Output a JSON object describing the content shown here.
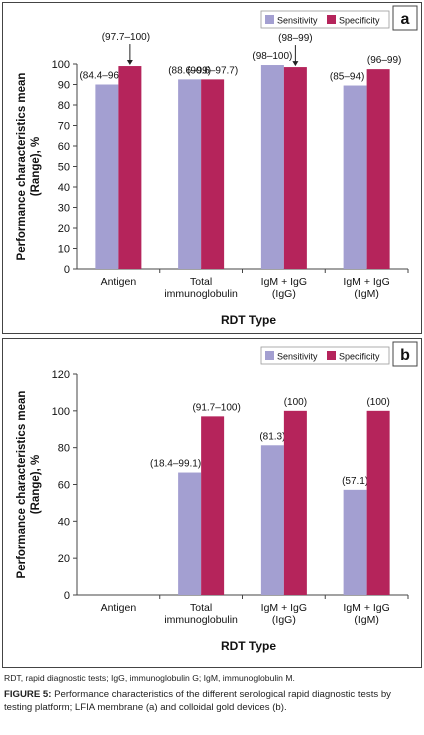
{
  "colors": {
    "sensitivity": "#a39fd1",
    "specificity": "#b5245b",
    "axis": "#444444",
    "text": "#111111"
  },
  "chart_data": [
    {
      "type": "bar",
      "panel_label": "a",
      "ylabel": "Performance characteristics mean (Range), %",
      "xlabel": "RDT Type",
      "ylim": [
        0,
        100
      ],
      "yticks": [
        0,
        10,
        20,
        30,
        40,
        50,
        60,
        70,
        80,
        90,
        100
      ],
      "legend_position": "top-right",
      "categories": [
        [
          "Antigen"
        ],
        [
          "Total",
          "immunoglobulin"
        ],
        [
          "IgM + IgG",
          "(IgG)"
        ],
        [
          "IgM + IgG",
          "(IgM)"
        ]
      ],
      "series": [
        {
          "name": "Sensitivity",
          "values": [
            90,
            92.5,
            99.5,
            89.5
          ],
          "labels": [
            "(84.4–96)",
            "(88.6–99)",
            "(98–100)",
            "(85–94)"
          ]
        },
        {
          "name": "Specificity",
          "values": [
            99,
            92.5,
            98.5,
            97.5
          ],
          "labels": [
            "(97.7–100)",
            "(90.6–97.7)",
            "(98–99)",
            "(96–99)"
          ]
        }
      ]
    },
    {
      "type": "bar",
      "panel_label": "b",
      "ylabel": "Performance characteristics mean (Range), %",
      "xlabel": "RDT Type",
      "ylim": [
        0,
        120
      ],
      "yticks": [
        0,
        20,
        40,
        60,
        80,
        100,
        120
      ],
      "legend_position": "top-right",
      "categories": [
        [
          "Antigen"
        ],
        [
          "Total",
          "immunoglobulin"
        ],
        [
          "IgM + IgG",
          "(IgG)"
        ],
        [
          "IgM + IgG",
          "(IgM)"
        ]
      ],
      "series": [
        {
          "name": "Sensitivity",
          "values": [
            null,
            66.5,
            81.3,
            57.1
          ],
          "labels": [
            "",
            "(18.4–99.1)",
            "(81.3)",
            "(57.1)"
          ]
        },
        {
          "name": "Specificity",
          "values": [
            null,
            97,
            100,
            100
          ],
          "labels": [
            "",
            "(91.7–100)",
            "(100)",
            "(100)"
          ]
        }
      ]
    }
  ],
  "footnote": "RDT, rapid diagnostic tests; IgG, immunoglobulin G; IgM, immunoglobulin M.",
  "caption": {
    "lead": "FIGURE 5:",
    "text": " Performance characteristics of the different serological rapid diagnostic tests by testing platform; LFIA membrane (a) and colloidal gold devices (b)."
  }
}
